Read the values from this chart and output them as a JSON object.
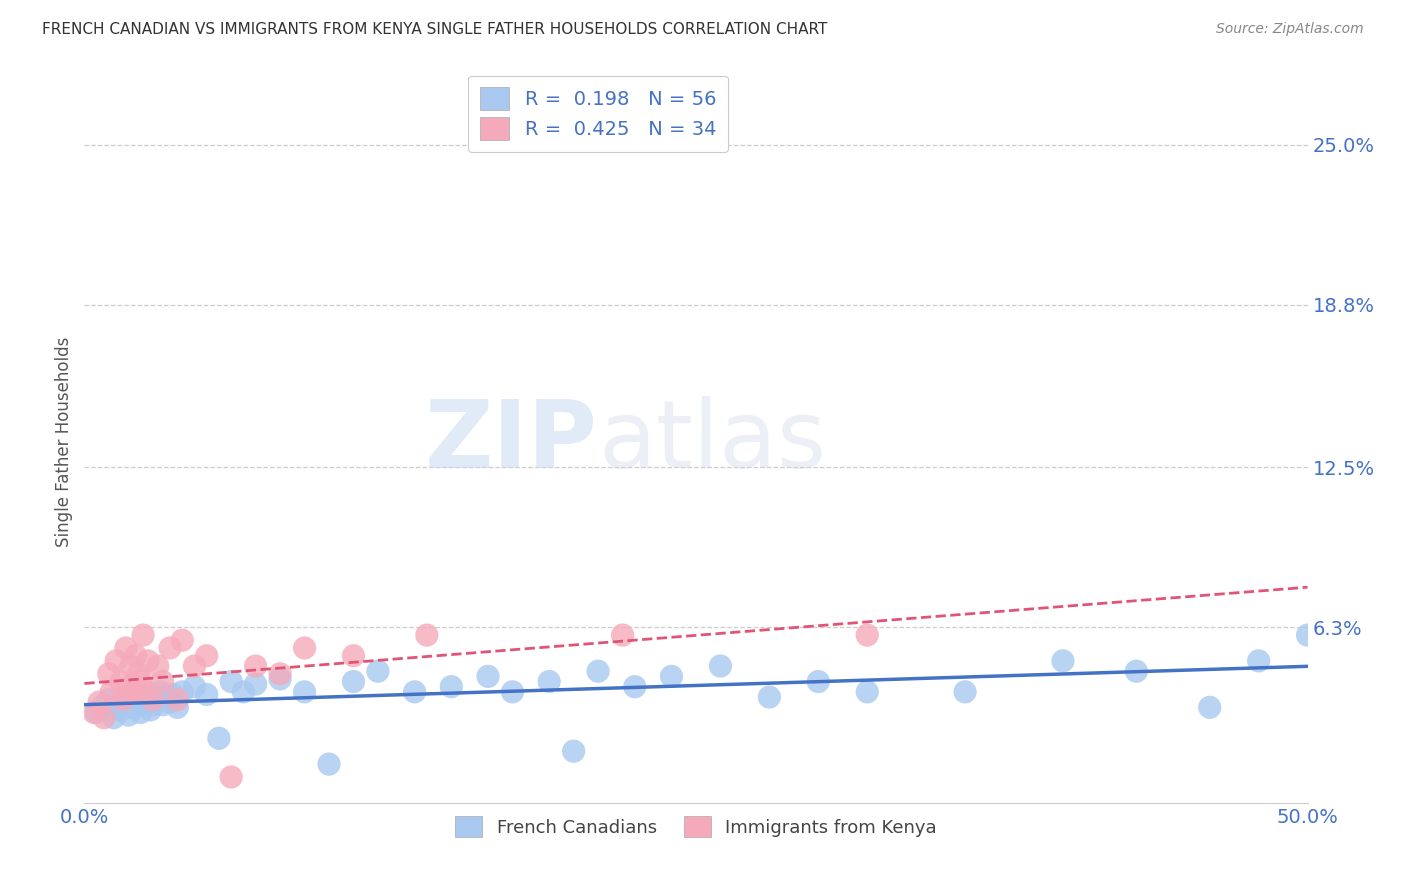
{
  "title": "FRENCH CANADIAN VS IMMIGRANTS FROM KENYA SINGLE FATHER HOUSEHOLDS CORRELATION CHART",
  "source": "Source: ZipAtlas.com",
  "ylabel": "Single Father Households",
  "ytick_labels": [
    "6.3%",
    "12.5%",
    "18.8%",
    "25.0%"
  ],
  "ytick_values": [
    0.063,
    0.125,
    0.188,
    0.25
  ],
  "xlim": [
    0.0,
    0.5
  ],
  "ylim": [
    -0.005,
    0.275
  ],
  "legend_label1": "French Canadians",
  "legend_label2": "Immigrants from Kenya",
  "r1": 0.198,
  "n1": 56,
  "r2": 0.425,
  "n2": 34,
  "color_blue": "#A8C8F0",
  "color_pink": "#F5AABB",
  "color_blue_dark": "#4472C4",
  "color_pink_dark": "#E05575",
  "background_color": "#FFFFFF",
  "french_canadians_x": [
    0.005,
    0.008,
    0.01,
    0.012,
    0.014,
    0.015,
    0.016,
    0.018,
    0.019,
    0.02,
    0.021,
    0.022,
    0.023,
    0.024,
    0.025,
    0.026,
    0.027,
    0.028,
    0.03,
    0.031,
    0.032,
    0.033,
    0.035,
    0.036,
    0.038,
    0.04,
    0.045,
    0.05,
    0.055,
    0.06,
    0.065,
    0.07,
    0.08,
    0.09,
    0.1,
    0.11,
    0.12,
    0.135,
    0.15,
    0.165,
    0.175,
    0.19,
    0.2,
    0.21,
    0.225,
    0.24,
    0.26,
    0.28,
    0.3,
    0.32,
    0.36,
    0.4,
    0.43,
    0.46,
    0.48,
    0.5
  ],
  "french_canadians_y": [
    0.03,
    0.033,
    0.035,
    0.028,
    0.032,
    0.031,
    0.034,
    0.029,
    0.036,
    0.032,
    0.035,
    0.033,
    0.03,
    0.037,
    0.034,
    0.036,
    0.031,
    0.033,
    0.035,
    0.038,
    0.033,
    0.036,
    0.034,
    0.037,
    0.032,
    0.038,
    0.04,
    0.037,
    0.02,
    0.042,
    0.038,
    0.041,
    0.043,
    0.038,
    0.01,
    0.042,
    0.046,
    0.038,
    0.04,
    0.044,
    0.038,
    0.042,
    0.015,
    0.046,
    0.04,
    0.044,
    0.048,
    0.036,
    0.042,
    0.038,
    0.038,
    0.05,
    0.046,
    0.032,
    0.05,
    0.06
  ],
  "kenya_x": [
    0.004,
    0.006,
    0.008,
    0.01,
    0.011,
    0.013,
    0.015,
    0.016,
    0.017,
    0.018,
    0.019,
    0.02,
    0.021,
    0.022,
    0.023,
    0.024,
    0.025,
    0.026,
    0.028,
    0.03,
    0.032,
    0.035,
    0.038,
    0.04,
    0.045,
    0.05,
    0.06,
    0.07,
    0.08,
    0.09,
    0.11,
    0.14,
    0.22,
    0.32
  ],
  "kenya_y": [
    0.03,
    0.034,
    0.028,
    0.045,
    0.038,
    0.05,
    0.042,
    0.035,
    0.055,
    0.04,
    0.048,
    0.038,
    0.052,
    0.045,
    0.042,
    0.06,
    0.038,
    0.05,
    0.035,
    0.048,
    0.042,
    0.055,
    0.035,
    0.058,
    0.048,
    0.052,
    0.005,
    0.048,
    0.045,
    0.055,
    0.052,
    0.06,
    0.06,
    0.06
  ]
}
